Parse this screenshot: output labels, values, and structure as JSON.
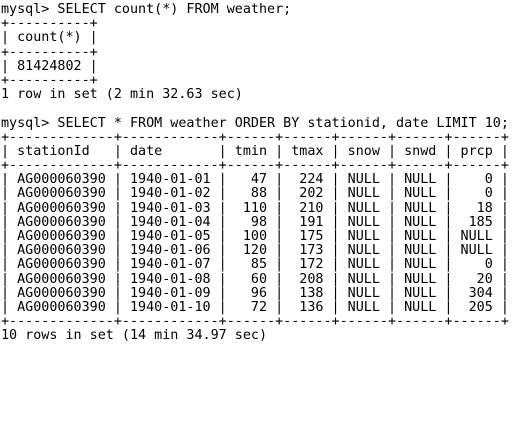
{
  "terminal": {
    "lines": [
      "mysql> SELECT count(*) FROM weather;",
      "+----------+",
      "| count(*) |",
      "+----------+",
      "| 81424802 |",
      "+----------+",
      "1 row in set (2 min 32.63 sec)",
      "",
      "mysql> SELECT * FROM weather ORDER BY stationid, date LIMIT 10;",
      "+-------------+------------+------+------+------+------+------+",
      "| stationId   | date       | tmin | tmax | snow | snwd | prcp |",
      "+-------------+------------+------+------+------+------+------+",
      "| AG000060390 | 1940-01-01 |   47 |  224 | NULL | NULL |    0 |",
      "| AG000060390 | 1940-01-02 |   88 |  202 | NULL | NULL |    0 |",
      "| AG000060390 | 1940-01-03 |  110 |  210 | NULL | NULL |   18 |",
      "| AG000060390 | 1940-01-04 |   98 |  191 | NULL | NULL |  185 |",
      "| AG000060390 | 1940-01-05 |  100 |  175 | NULL | NULL | NULL |",
      "| AG000060390 | 1940-01-06 |  120 |  173 | NULL | NULL | NULL |",
      "| AG000060390 | 1940-01-07 |   85 |  172 | NULL | NULL |    0 |",
      "| AG000060390 | 1940-01-08 |   60 |  208 | NULL | NULL |   20 |",
      "| AG000060390 | 1940-01-09 |   96 |  138 | NULL | NULL |  304 |",
      "| AG000060390 | 1940-01-10 |   72 |  136 | NULL | NULL |  205 |",
      "+-------------+------------+------+------+------+------+------+",
      "10 rows in set (14 min 34.97 sec)",
      "",
      ""
    ]
  }
}
